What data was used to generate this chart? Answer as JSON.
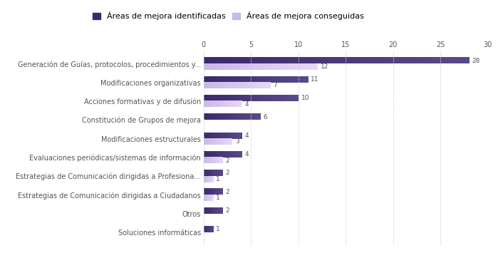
{
  "categories": [
    "Soluciones informáticas",
    "Otros",
    "Estrategias de Comunicación dirigidas a Ciudadanos",
    "Estrategias de Comunicación dirigidas a Profesiona...",
    "Evaluaciones periódicas/sistemas de información",
    "Modificaciones estructurales",
    "Constitución de Grupos de mejora",
    "Acciones formativas y de difusión",
    "Modificaciones organizativas",
    "Generación de Guías, protocolos, procedimientos y..."
  ],
  "identificadas": [
    1,
    2,
    2,
    2,
    4,
    4,
    6,
    10,
    11,
    28
  ],
  "conseguidas": [
    0,
    0,
    1,
    1,
    2,
    3,
    0,
    4,
    7,
    12
  ],
  "color_identificadas": "#3b2a6b",
  "color_conseguidas": "#c9b8e8",
  "color_conseguidas_dark": "#b09acc",
  "xlim": [
    0,
    30
  ],
  "xticks": [
    0,
    5,
    10,
    15,
    20,
    25,
    30
  ],
  "legend_identificadas": "Áreas de mejora identificadas",
  "legend_conseguidas": "Áreas de mejora conseguidas",
  "bar_height": 0.32,
  "fontsize_labels": 7.0,
  "fontsize_ticks": 7.0,
  "fontsize_legend": 8.0,
  "fontsize_values": 6.5,
  "grid_color": "#d0d0d0"
}
